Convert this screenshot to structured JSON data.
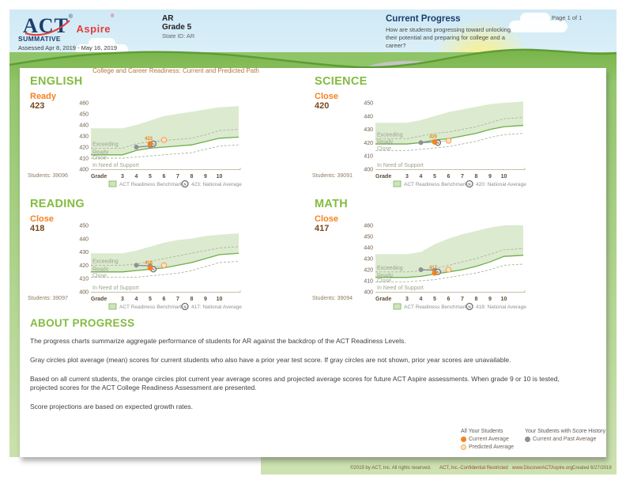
{
  "header": {
    "logo_act": "ACT",
    "logo_aspire": "Aspire",
    "logo_reg": "®",
    "report_type": "SUMMATIVE",
    "assessed": "Assessed Apr 8, 2019 - May 16, 2019",
    "org": "AR",
    "grade": "Grade 5",
    "state_id": "State ID: AR",
    "title": "Current Progress",
    "subtitle": "How are students progressing toward unlocking their potential and preparing for college and a career?",
    "page_number": "Page 1 of 1"
  },
  "section_title": "College and Career Readiness: Current and Predicted Path",
  "chart_data": [
    {
      "type": "line",
      "subject": "ENGLISH",
      "status": "Ready",
      "score": "423",
      "students": "Students: 39096",
      "xlabel": "Grade",
      "grades": [
        3,
        4,
        5,
        6,
        7,
        8,
        9,
        10
      ],
      "ylim": [
        400,
        460
      ],
      "yticks": [
        400,
        410,
        420,
        430,
        440,
        450,
        460
      ],
      "zone_labels": [
        "Exceeding",
        "Ready",
        "Close",
        "In Need of Support"
      ],
      "bands": {
        "top": [
          437,
          437,
          440,
          444,
          448,
          450,
          452,
          454,
          456,
          457
        ],
        "exceeding": [
          419,
          419,
          423,
          425,
          426,
          427,
          428,
          431,
          435,
          436
        ],
        "ready": [
          413,
          413,
          417,
          419,
          420,
          421,
          422,
          425,
          428,
          429
        ],
        "close": [
          410,
          410,
          411,
          412,
          413,
          414,
          415,
          418,
          421,
          422
        ]
      },
      "points": {
        "past_avg_grade4": 420,
        "history_avg_grade5": 421,
        "current_avg_grade5": 423,
        "predicted_avg_grade6": 426.5,
        "national_average": 423
      },
      "point_label": "423",
      "legend_benchmark": "ACT Readiness Benchmark",
      "legend_national": "423: National Average"
    },
    {
      "type": "line",
      "subject": "SCIENCE",
      "status": "Close",
      "score": "420",
      "students": "Students: 39091",
      "xlabel": "Grade",
      "grades": [
        3,
        4,
        5,
        6,
        7,
        8,
        9,
        10
      ],
      "ylim": [
        400,
        450
      ],
      "yticks": [
        400,
        410,
        420,
        430,
        440,
        450
      ],
      "zone_labels": [
        "Exceeding",
        "Ready",
        "Close",
        "In Need of Support"
      ],
      "bands": {
        "top": [
          435,
          435,
          437,
          440,
          443,
          445,
          447,
          449,
          450,
          451
        ],
        "exceeding": [
          423,
          423,
          425,
          427,
          428,
          430,
          432,
          435,
          438,
          439
        ],
        "ready": [
          419,
          419,
          420,
          422,
          423,
          425,
          427,
          430,
          432,
          433
        ],
        "close": [
          414,
          414,
          415,
          416,
          417,
          419,
          421,
          424,
          426,
          427
        ]
      },
      "points": {
        "past_avg_grade4": 420,
        "history_avg_grade5": 420.5,
        "current_avg_grade5": 420.5,
        "predicted_avg_grade6": 421.5,
        "national_average": 420
      },
      "point_label": "420",
      "legend_benchmark": "ACT Readiness Benchmark",
      "legend_national": "420: National Average"
    },
    {
      "type": "line",
      "subject": "READING",
      "status": "Close",
      "score": "418",
      "students": "Students: 39097",
      "xlabel": "Grade",
      "grades": [
        3,
        4,
        5,
        6,
        7,
        8,
        9,
        10
      ],
      "ylim": [
        400,
        450
      ],
      "yticks": [
        400,
        410,
        420,
        430,
        440,
        450
      ],
      "zone_labels": [
        "Exceeding",
        "Ready",
        "Close",
        "In Need of Support"
      ],
      "bands": {
        "top": [
          429,
          429,
          431,
          434,
          437,
          439,
          440,
          442,
          443,
          444
        ],
        "exceeding": [
          420,
          420,
          421,
          423,
          425,
          427,
          429,
          431,
          433,
          434
        ],
        "ready": [
          415,
          415,
          416,
          417,
          418,
          420,
          422,
          425,
          428,
          429
        ],
        "close": [
          411,
          411,
          411,
          412,
          413,
          414,
          416,
          419,
          422,
          423
        ]
      },
      "points": {
        "past_avg_grade4": 420,
        "history_avg_grade5": 419.5,
        "current_avg_grade5": 418,
        "predicted_avg_grade6": 420,
        "national_average": 417
      },
      "point_label": "418",
      "legend_benchmark": "ACT Readiness Benchmark",
      "legend_national": "417: National Average"
    },
    {
      "type": "line",
      "subject": "MATH",
      "status": "Close",
      "score": "417",
      "students": "Students: 39094",
      "xlabel": "Grade",
      "grades": [
        3,
        4,
        5,
        6,
        7,
        8,
        9,
        10
      ],
      "ylim": [
        400,
        460
      ],
      "yticks": [
        400,
        410,
        420,
        430,
        440,
        450,
        460
      ],
      "zone_labels": [
        "Exceeding",
        "Ready",
        "Close",
        "In Need of Support"
      ],
      "bands": {
        "top": [
          434,
          434,
          436,
          443,
          448,
          452,
          455,
          458,
          460,
          460
        ],
        "exceeding": [
          418,
          418,
          419,
          421,
          424,
          427,
          430,
          434,
          438,
          439
        ],
        "ready": [
          413,
          413,
          414,
          416,
          418,
          420,
          423,
          427,
          432,
          433
        ],
        "close": [
          409,
          409,
          410,
          411,
          413,
          415,
          417,
          420,
          424,
          425
        ]
      },
      "points": {
        "past_avg_grade4": 420,
        "history_avg_grade5": 419.5,
        "current_avg_grade5": 417,
        "predicted_avg_grade6": 420,
        "national_average": 418
      },
      "point_label": "417",
      "legend_benchmark": "ACT Readiness Benchmark",
      "legend_national": "418: National Average"
    }
  ],
  "about": {
    "title": "ABOUT PROGRESS",
    "paragraphs": [
      "The progress charts summarize aggregate performance of students for AR against the backdrop of the ACT Readiness Levels.",
      "Gray circles plot average (mean) scores for current students who also have a prior year test score. If gray circles are not shown, prior year scores are unavailable.",
      "Based on all current students, the orange circles plot current year average scores and projected average scores for future ACT Aspire assessments. When grade 9 or 10 is tested, projected scores for the ACT College Readiness Assessment are presented.",
      "Score projections are based on expected growth rates."
    ]
  },
  "score_legend": {
    "all_students_title": "All Your Students",
    "current_avg": "Current Average",
    "predicted_avg": "Predicted Average",
    "history_title": "Your Students with Score History",
    "past_avg": "Current and Past Average"
  },
  "footer": {
    "copyright": "©2019 by ACT, Inc. All rights reserved.",
    "confidential": "ACT, Inc.-Confidential Restricted",
    "website": "www.DiscoverACTAspire.org",
    "created": "Created 6/27/2019"
  },
  "colors": {
    "brand_green": "#84bb41",
    "brand_navy": "#1d3d6d",
    "brand_red": "#e23d3f",
    "status_orange": "#f58220",
    "score_brown": "#77491f",
    "benchmark_fill": "#dcead0",
    "ready_line": "#6fae46",
    "dashed_line": "#a9b79a",
    "gray_marker": "#8f9194",
    "predicted_fill": "#fde3c2",
    "predicted_stroke": "#f0a860",
    "axis_text": "#6d5c49",
    "xaxis_text": "#5d4a33",
    "zone_text": "#9aa48c",
    "legend_text": "#8f9092",
    "point_label": "#e8871e"
  }
}
